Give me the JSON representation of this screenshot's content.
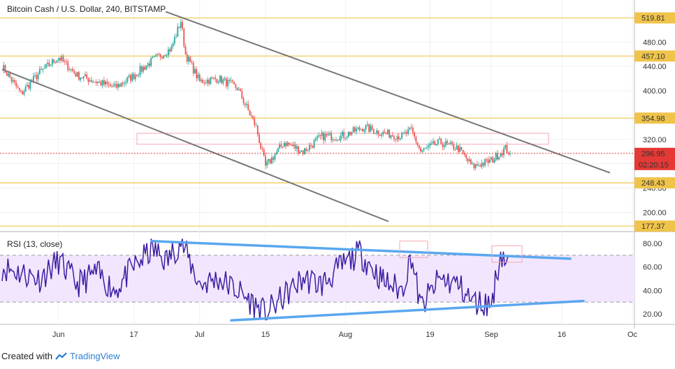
{
  "header": {
    "title": "Bitcoin Cash / U.S. Dollar, 240, BITSTAMP"
  },
  "rsi_panel": {
    "label": "RSI (13, close)"
  },
  "footer": {
    "created_with": "Created with",
    "brand": "TradingView"
  },
  "chart_data": [
    {
      "type": "line",
      "series": [
        {
          "x": [
            "May 20",
            "May 24",
            "May 28",
            "Jun 1",
            "Jun 5",
            "Jun 9",
            "Jun 13",
            "Jun 17",
            "Jun 21",
            "Jun 25",
            "Jun 27",
            "Jun 28",
            "Jul 1",
            "Jul 5",
            "Jul 9",
            "Jul 13",
            "Jul 15",
            "Jul 19",
            "Jul 23",
            "Jul 27",
            "Jul 31",
            "Aug 5",
            "Aug 9",
            "Aug 13",
            "Aug 15",
            "Aug 17",
            "Aug 21",
            "Aug 25",
            "Aug 28",
            "Sep 1",
            "Sep 4",
            "Sep 5"
          ],
          "values": [
            440,
            395,
            430,
            455,
            425,
            415,
            405,
            425,
            450,
            470,
            515,
            460,
            415,
            420,
            405,
            340,
            275,
            315,
            300,
            325,
            325,
            340,
            330,
            325,
            335,
            300,
            315,
            305,
            275,
            285,
            305,
            297
          ]
        }
      ],
      "ylim": [
        170,
        530
      ],
      "y_ticks": [
        200.0,
        240.0,
        280.0,
        320.0,
        360.0,
        400.0,
        440.0,
        480.0
      ],
      "x_ticks": [
        "Jun",
        "17",
        "Jul",
        "15",
        "Aug",
        "19",
        "Sep",
        "16",
        "Oc"
      ],
      "horizontal_levels": [
        {
          "value": 519.81,
          "label": "519.81"
        },
        {
          "value": 457.1,
          "label": "457.10"
        },
        {
          "value": 354.98,
          "label": "354.98"
        },
        {
          "value": 248.43,
          "label": "248.43"
        },
        {
          "value": 177.37,
          "label": "177.37"
        }
      ],
      "last_price": {
        "value": 296.95,
        "label": "296.95",
        "countdown": "02:20:15"
      },
      "colors": {
        "level": "#f0c44b",
        "trendline": "#777777",
        "up": "#26a69a",
        "down": "#ef5350",
        "zone": "#f4a6b0",
        "last": "#e53935"
      }
    },
    {
      "type": "line",
      "title": "RSI (13, close)",
      "ylim": [
        10,
        90
      ],
      "y_ticks": [
        20.0,
        40.0,
        60.0,
        80.0
      ],
      "band": [
        30,
        70
      ],
      "series": [
        {
          "x": [
            "May 20",
            "May 24",
            "May 28",
            "Jun 1",
            "Jun 5",
            "Jun 9",
            "Jun 13",
            "Jun 17",
            "Jun 21",
            "Jun 24",
            "Jun 27",
            "Jul 1",
            "Jul 5",
            "Jul 9",
            "Jul 12",
            "Jul 15",
            "Jul 19",
            "Jul 23",
            "Jul 27",
            "Jul 31",
            "Aug 4",
            "Aug 9",
            "Aug 13",
            "Aug 15",
            "Aug 17",
            "Aug 21",
            "Aug 25",
            "Aug 28",
            "Sep 1",
            "Sep 3",
            "Sep 5"
          ],
          "values": [
            60,
            55,
            50,
            65,
            45,
            55,
            40,
            60,
            75,
            65,
            82,
            45,
            50,
            40,
            30,
            20,
            35,
            50,
            45,
            60,
            72,
            48,
            40,
            70,
            25,
            50,
            45,
            30,
            28,
            72,
            60
          ]
        }
      ],
      "colors": {
        "line": "#3b1ea0",
        "band": "#f2e6ff",
        "trendline": "#5aa7ef",
        "zone": "#f4a6b0"
      }
    }
  ]
}
